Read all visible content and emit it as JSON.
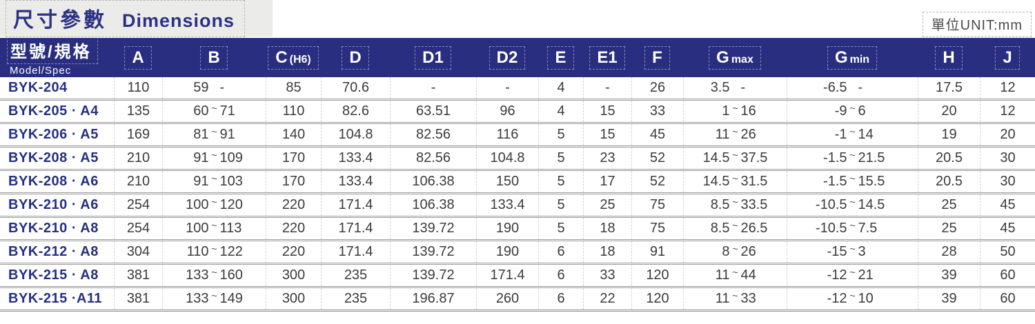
{
  "header": {
    "title_zh": "尺寸參數",
    "title_en": "Dimensions",
    "unit_label": "單位UNIT:mm"
  },
  "table": {
    "model_header_zh": "型號/規格",
    "model_header_en": "Model/Spec",
    "columns": [
      {
        "main": "A",
        "sub": ""
      },
      {
        "main": "B",
        "sub": ""
      },
      {
        "main": "C",
        "sub": "(H6)"
      },
      {
        "main": "D",
        "sub": ""
      },
      {
        "main": "D1",
        "sub": ""
      },
      {
        "main": "D2",
        "sub": ""
      },
      {
        "main": "E",
        "sub": ""
      },
      {
        "main": "E1",
        "sub": ""
      },
      {
        "main": "F",
        "sub": ""
      },
      {
        "main": "G",
        "sub": "max"
      },
      {
        "main": "G",
        "sub": "min"
      },
      {
        "main": "H",
        "sub": ""
      },
      {
        "main": "J",
        "sub": ""
      }
    ],
    "rows": [
      {
        "model": "BYK-204",
        "values": [
          "110",
          [
            "59",
            "-",
            ""
          ],
          "85",
          "70.6",
          "-",
          "-",
          "4",
          "-",
          "26",
          [
            "3.5",
            "-",
            ""
          ],
          [
            "-6.5",
            "-",
            ""
          ],
          "17.5",
          "12"
        ]
      },
      {
        "model": "BYK-205 · A4",
        "values": [
          "135",
          [
            "60",
            "71",
            "~"
          ],
          "110",
          "82.6",
          "63.51",
          "96",
          "4",
          "15",
          "33",
          [
            "1",
            "16",
            "~"
          ],
          [
            "-9",
            "6",
            "~"
          ],
          "20",
          "12"
        ]
      },
      {
        "model": "BYK-206 · A5",
        "values": [
          "169",
          [
            "81",
            "91",
            "~"
          ],
          "140",
          "104.8",
          "82.56",
          "116",
          "5",
          "15",
          "45",
          [
            "11",
            "26",
            "~"
          ],
          [
            "-1",
            "14",
            "~"
          ],
          "19",
          "20"
        ]
      },
      {
        "model": "BYK-208 · A5",
        "values": [
          "210",
          [
            "91",
            "109",
            "~"
          ],
          "170",
          "133.4",
          "82.56",
          "104.8",
          "5",
          "23",
          "52",
          [
            "14.5",
            "37.5",
            "~"
          ],
          [
            "-1.5",
            "21.5",
            "~"
          ],
          "20.5",
          "30"
        ]
      },
      {
        "model": "BYK-208 · A6",
        "values": [
          "210",
          [
            "91",
            "103",
            "~"
          ],
          "170",
          "133.4",
          "106.38",
          "150",
          "5",
          "17",
          "52",
          [
            "14.5",
            "31.5",
            "~"
          ],
          [
            "-1.5",
            "15.5",
            "~"
          ],
          "20.5",
          "30"
        ]
      },
      {
        "model": "BYK-210 · A6",
        "values": [
          "254",
          [
            "100",
            "120",
            "~"
          ],
          "220",
          "171.4",
          "106.38",
          "133.4",
          "5",
          "25",
          "75",
          [
            "8.5",
            "33.5",
            "~"
          ],
          [
            "-10.5",
            "14.5",
            "~"
          ],
          "25",
          "45"
        ]
      },
      {
        "model": "BYK-210 · A8",
        "values": [
          "254",
          [
            "100",
            "113",
            "~"
          ],
          "220",
          "171.4",
          "139.72",
          "190",
          "5",
          "18",
          "75",
          [
            "8.5",
            "26.5",
            "~"
          ],
          [
            "-10.5",
            "7.5",
            "~"
          ],
          "25",
          "45"
        ]
      },
      {
        "model": "BYK-212 · A8",
        "values": [
          "304",
          [
            "110",
            "122",
            "~"
          ],
          "220",
          "171.4",
          "139.72",
          "190",
          "6",
          "18",
          "91",
          [
            "8",
            "26",
            "~"
          ],
          [
            "-15",
            "3",
            "~"
          ],
          "28",
          "50"
        ]
      },
      {
        "model": "BYK-215 · A8",
        "values": [
          "381",
          [
            "133",
            "160",
            "~"
          ],
          "300",
          "235",
          "139.72",
          "171.4",
          "6",
          "33",
          "120",
          [
            "11",
            "44",
            "~"
          ],
          [
            "-12",
            "21",
            "~"
          ],
          "39",
          "60"
        ]
      },
      {
        "model": "BYK-215 ·A11",
        "values": [
          "381",
          [
            "133",
            "149",
            "~"
          ],
          "300",
          "235",
          "196.87",
          "260",
          "6",
          "22",
          "120",
          [
            "11",
            "33",
            "~"
          ],
          [
            "-12",
            "10",
            "~"
          ],
          "39",
          "60"
        ]
      }
    ]
  }
}
